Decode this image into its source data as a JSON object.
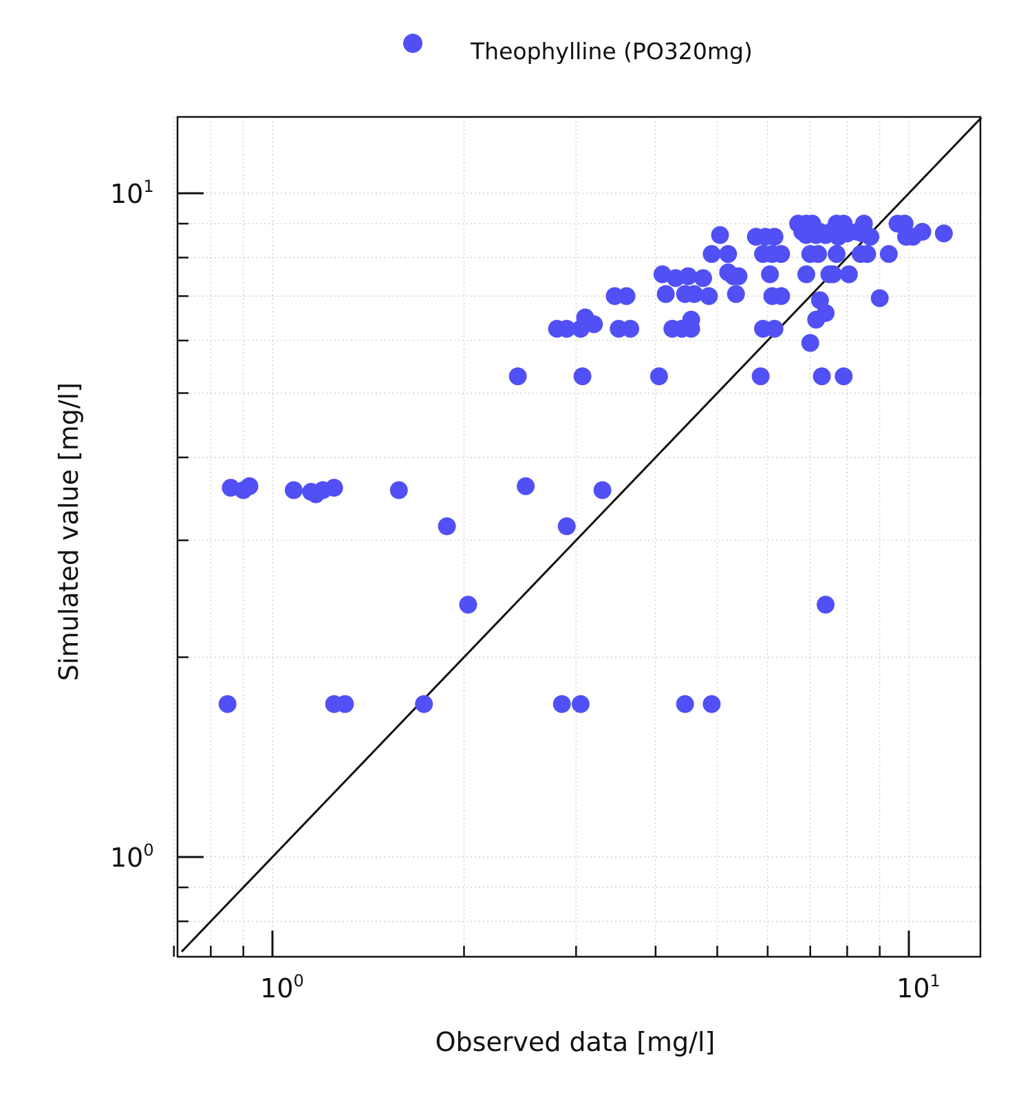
{
  "chart_data": {
    "type": "scatter",
    "xlabel": "Observed data [mg/l]",
    "ylabel": "Simulated value [mg/l]",
    "xscale": "log",
    "yscale": "log",
    "xlim": [
      0.7,
      13
    ],
    "ylim": [
      0.72,
      15
    ],
    "x_ticks": [
      {
        "base": "10",
        "exp": "0",
        "value": 1
      },
      {
        "base": "10",
        "exp": "1",
        "value": 10
      }
    ],
    "y_ticks": [
      {
        "base": "10",
        "exp": "0",
        "value": 1
      },
      {
        "base": "10",
        "exp": "1",
        "value": 10
      }
    ],
    "grid": true,
    "legend_position": "top-center",
    "identity_line": true,
    "series": [
      {
        "name": "Theophylline (PO320mg)",
        "color": "#5050f5",
        "points": [
          [
            0.85,
            1.7
          ],
          [
            1.25,
            1.7
          ],
          [
            1.3,
            1.7
          ],
          [
            1.73,
            1.7
          ],
          [
            2.85,
            1.7
          ],
          [
            3.05,
            1.7
          ],
          [
            4.45,
            1.7
          ],
          [
            4.9,
            1.7
          ],
          [
            2.03,
            2.4
          ],
          [
            7.4,
            2.4
          ],
          [
            1.88,
            3.15
          ],
          [
            2.9,
            3.15
          ],
          [
            0.86,
            3.6
          ],
          [
            0.9,
            3.57
          ],
          [
            0.92,
            3.62
          ],
          [
            1.08,
            3.57
          ],
          [
            1.15,
            3.55
          ],
          [
            1.17,
            3.52
          ],
          [
            1.2,
            3.57
          ],
          [
            1.25,
            3.6
          ],
          [
            1.58,
            3.57
          ],
          [
            2.5,
            3.62
          ],
          [
            3.3,
            3.57
          ],
          [
            2.43,
            5.3
          ],
          [
            3.07,
            5.3
          ],
          [
            4.05,
            5.3
          ],
          [
            5.85,
            5.3
          ],
          [
            7.3,
            5.3
          ],
          [
            7.9,
            5.3
          ],
          [
            7.0,
            5.95
          ],
          [
            7.15,
            6.45
          ],
          [
            7.25,
            6.9
          ],
          [
            7.4,
            6.6
          ],
          [
            2.8,
            6.25
          ],
          [
            2.9,
            6.25
          ],
          [
            3.05,
            6.25
          ],
          [
            3.1,
            6.5
          ],
          [
            3.2,
            6.35
          ],
          [
            3.5,
            6.25
          ],
          [
            3.65,
            6.25
          ],
          [
            4.25,
            6.25
          ],
          [
            4.4,
            6.25
          ],
          [
            4.55,
            6.25
          ],
          [
            4.55,
            6.45
          ],
          [
            5.9,
            6.25
          ],
          [
            6.15,
            6.25
          ],
          [
            3.45,
            7.0
          ],
          [
            3.6,
            7.0
          ],
          [
            4.15,
            7.05
          ],
          [
            4.45,
            7.05
          ],
          [
            4.6,
            7.05
          ],
          [
            4.85,
            7.0
          ],
          [
            5.35,
            7.05
          ],
          [
            6.1,
            7.0
          ],
          [
            6.3,
            7.0
          ],
          [
            9.0,
            6.95
          ],
          [
            4.1,
            7.55
          ],
          [
            4.3,
            7.45
          ],
          [
            4.5,
            7.5
          ],
          [
            4.75,
            7.45
          ],
          [
            5.2,
            7.6
          ],
          [
            5.3,
            7.5
          ],
          [
            5.4,
            7.5
          ],
          [
            6.05,
            7.55
          ],
          [
            6.9,
            7.55
          ],
          [
            7.5,
            7.55
          ],
          [
            7.6,
            7.55
          ],
          [
            8.05,
            7.55
          ],
          [
            4.9,
            8.1
          ],
          [
            5.2,
            8.1
          ],
          [
            5.9,
            8.1
          ],
          [
            6.1,
            8.1
          ],
          [
            6.3,
            8.1
          ],
          [
            7.0,
            8.1
          ],
          [
            7.2,
            8.1
          ],
          [
            7.7,
            8.1
          ],
          [
            8.4,
            8.1
          ],
          [
            8.6,
            8.1
          ],
          [
            9.3,
            8.1
          ],
          [
            5.05,
            8.65
          ],
          [
            5.75,
            8.6
          ],
          [
            5.95,
            8.6
          ],
          [
            6.15,
            8.6
          ],
          [
            6.8,
            8.75
          ],
          [
            6.9,
            8.65
          ],
          [
            7.15,
            8.65
          ],
          [
            7.25,
            8.75
          ],
          [
            7.4,
            8.65
          ],
          [
            7.55,
            8.75
          ],
          [
            7.75,
            8.6
          ],
          [
            8.0,
            8.7
          ],
          [
            8.3,
            8.75
          ],
          [
            8.45,
            8.7
          ],
          [
            8.7,
            8.6
          ],
          [
            9.9,
            8.6
          ],
          [
            10.15,
            8.6
          ],
          [
            10.5,
            8.75
          ],
          [
            11.35,
            8.7
          ],
          [
            6.7,
            9.0
          ],
          [
            6.9,
            9.0
          ],
          [
            7.05,
            9.0
          ],
          [
            7.7,
            9.0
          ],
          [
            7.9,
            9.0
          ],
          [
            8.5,
            9.0
          ],
          [
            9.6,
            9.0
          ],
          [
            9.85,
            9.0
          ]
        ]
      }
    ]
  }
}
